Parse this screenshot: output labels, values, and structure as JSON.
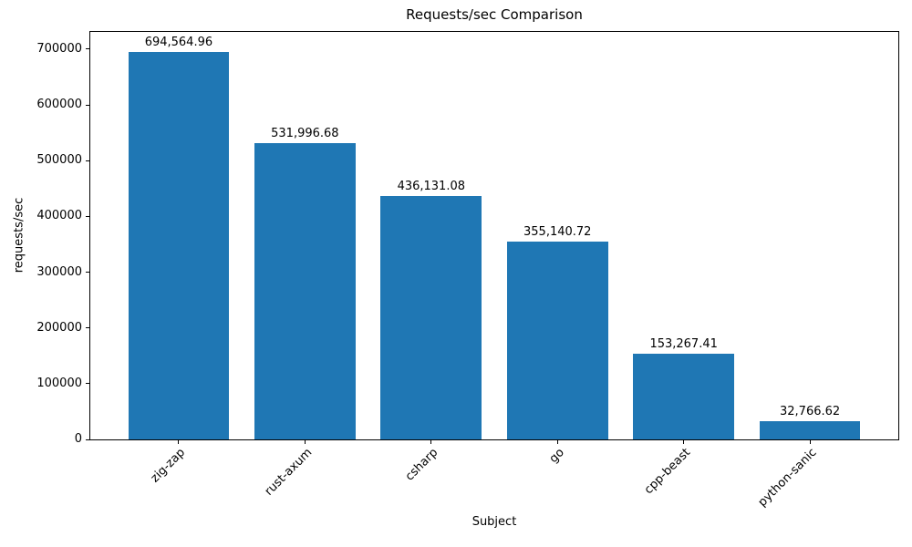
{
  "chart_data": {
    "type": "bar",
    "title": "Requests/sec Comparison",
    "xlabel": "Subject",
    "ylabel": "requests/sec",
    "categories": [
      "zig-zap",
      "rust-axum",
      "csharp",
      "go",
      "cpp-beast",
      "python-sanic"
    ],
    "values": [
      694564.96,
      531996.68,
      436131.08,
      355140.72,
      153267.41,
      32766.62
    ],
    "value_labels": [
      "694,564.96",
      "531,996.68",
      "436,131.08",
      "355,140.72",
      "153,267.41",
      "32,766.62"
    ],
    "yticks": [
      0,
      100000,
      200000,
      300000,
      400000,
      500000,
      600000,
      700000
    ],
    "ytick_labels": [
      "0",
      "100000",
      "200000",
      "300000",
      "400000",
      "500000",
      "600000",
      "700000"
    ],
    "ylim": [
      0,
      731000
    ],
    "bar_color": "#1f77b4",
    "text_color": "#000000",
    "grid": false,
    "legend": null
  }
}
